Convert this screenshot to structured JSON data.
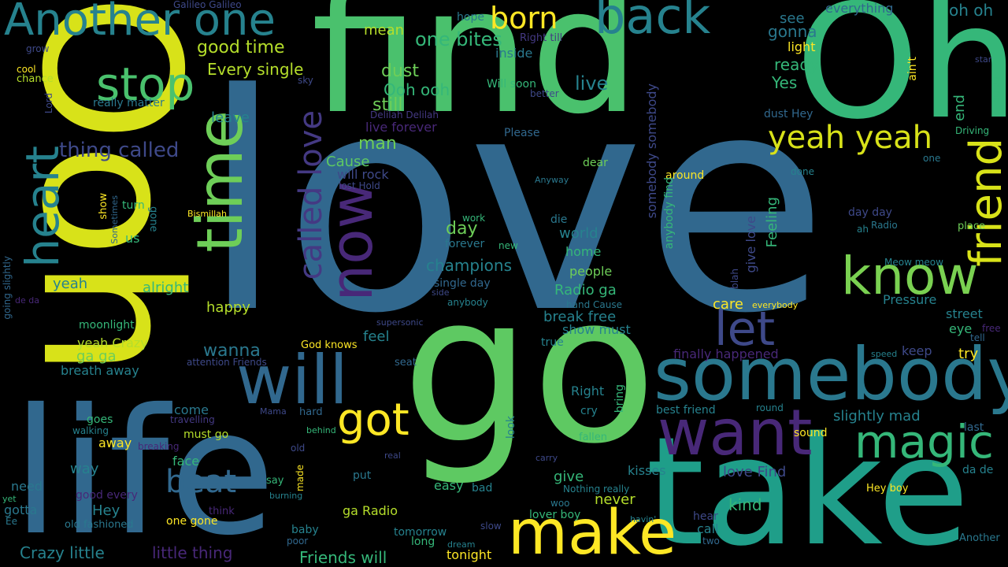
{
  "palette": {
    "background": "#000000",
    "colors": [
      "#fde725",
      "#b5de2b",
      "#6ece58",
      "#35b779",
      "#1f9e89",
      "#26828e",
      "#31688e",
      "#3e4989",
      "#482878",
      "#440154"
    ]
  },
  "words": [
    {
      "text": "love",
      "color": "#31688e"
    },
    {
      "text": "Ooh",
      "color": "#d8e219"
    },
    {
      "text": "find",
      "color": "#4ac16d"
    },
    {
      "text": "Oh",
      "color": "#35b779"
    },
    {
      "text": "go",
      "color": "#5ec962"
    },
    {
      "text": "take",
      "color": "#1f9e89"
    },
    {
      "text": "life",
      "color": "#31688e"
    },
    {
      "text": "somebody",
      "color": "#2a788e"
    },
    {
      "text": "want",
      "color": "#482878"
    },
    {
      "text": "will",
      "color": "#31688e"
    },
    {
      "text": "make",
      "color": "#fde725"
    },
    {
      "text": "magic",
      "color": "#35b779"
    },
    {
      "text": "Another one",
      "color": "#26828e"
    },
    {
      "text": "back",
      "color": "#26828e"
    },
    {
      "text": "born",
      "color": "#fde725"
    },
    {
      "text": "stop",
      "color": "#4ac16d"
    },
    {
      "text": "time",
      "color": "#6ece58"
    },
    {
      "text": "now",
      "color": "#482878"
    },
    {
      "text": "heart",
      "color": "#26828e"
    },
    {
      "text": "yeah yeah",
      "color": "#d8e219"
    },
    {
      "text": "friend",
      "color": "#d8e219"
    },
    {
      "text": "know",
      "color": "#7ad151"
    },
    {
      "text": "let",
      "color": "#3e4989"
    },
    {
      "text": "got",
      "color": "#fde725"
    },
    {
      "text": "beat",
      "color": "#31688e"
    },
    {
      "text": "called love",
      "color": "#443983"
    },
    {
      "text": "thing called",
      "color": "#3e4989"
    },
    {
      "text": "good time",
      "color": "#b5de2b"
    },
    {
      "text": "Every single",
      "color": "#b5de2b"
    },
    {
      "text": "one bites",
      "color": "#35b779"
    },
    {
      "text": "mean",
      "color": "#b5de2b"
    },
    {
      "text": "dust",
      "color": "#6ece58"
    },
    {
      "text": "Ooh ooh",
      "color": "#35b779"
    },
    {
      "text": "still",
      "color": "#6ece58"
    },
    {
      "text": "live",
      "color": "#26828e"
    },
    {
      "text": "see",
      "color": "#2a788e"
    },
    {
      "text": "gonna",
      "color": "#2a788e"
    },
    {
      "text": "light",
      "color": "#fde725"
    },
    {
      "text": "ready",
      "color": "#35b779"
    },
    {
      "text": "Yes",
      "color": "#35b779"
    },
    {
      "text": "oh oh",
      "color": "#26828e"
    },
    {
      "text": "everything",
      "color": "#31688e"
    },
    {
      "text": "Galileo Galileo",
      "color": "#3e4989"
    },
    {
      "text": "hope",
      "color": "#2a788e"
    },
    {
      "text": "Right till",
      "color": "#443983"
    },
    {
      "text": "inside",
      "color": "#2a788e"
    },
    {
      "text": "Will soon",
      "color": "#35b779"
    },
    {
      "text": "better",
      "color": "#3e4989"
    },
    {
      "text": "Delilah Delilah",
      "color": "#443983"
    },
    {
      "text": "live forever",
      "color": "#482878"
    },
    {
      "text": "man",
      "color": "#6ece58"
    },
    {
      "text": "Please",
      "color": "#31688e"
    },
    {
      "text": "Cause",
      "color": "#5ec962"
    },
    {
      "text": "will rock",
      "color": "#3e4989"
    },
    {
      "text": "lost Hold",
      "color": "#3e4989"
    },
    {
      "text": "dear",
      "color": "#6ece58"
    },
    {
      "text": "Anyway",
      "color": "#2a788e"
    },
    {
      "text": "around",
      "color": "#fde725"
    },
    {
      "text": "dust Hey",
      "color": "#31688e"
    },
    {
      "text": "end",
      "color": "#35b779"
    },
    {
      "text": "Driving",
      "color": "#35b779"
    },
    {
      "text": "one",
      "color": "#2a788e"
    },
    {
      "text": "done",
      "color": "#26828e"
    },
    {
      "text": "day day",
      "color": "#3e4989"
    },
    {
      "text": "Radio",
      "color": "#2a788e"
    },
    {
      "text": "ah",
      "color": "#26828e"
    },
    {
      "text": "place",
      "color": "#6ece58"
    },
    {
      "text": "grow",
      "color": "#3e4989"
    },
    {
      "text": "cool",
      "color": "#fde725"
    },
    {
      "text": "chance",
      "color": "#b5de2b"
    },
    {
      "text": "sky",
      "color": "#3e4989"
    },
    {
      "text": "really matter",
      "color": "#2a788e"
    },
    {
      "text": "Lord",
      "color": "#3e4989"
    },
    {
      "text": "leave",
      "color": "#26828e"
    },
    {
      "text": "turn",
      "color": "#35b779"
    },
    {
      "text": "show",
      "color": "#fde725"
    },
    {
      "text": "gone",
      "color": "#26828e"
    },
    {
      "text": "Sometimes",
      "color": "#31688e"
    },
    {
      "text": "us",
      "color": "#35b779"
    },
    {
      "text": "Bismillah",
      "color": "#fde725"
    },
    {
      "text": "work",
      "color": "#35b779"
    },
    {
      "text": "day",
      "color": "#6ece58"
    },
    {
      "text": "world",
      "color": "#26828e"
    },
    {
      "text": "die",
      "color": "#2a788e"
    },
    {
      "text": "forever",
      "color": "#2a788e"
    },
    {
      "text": "new",
      "color": "#35b779"
    },
    {
      "text": "home",
      "color": "#35b779"
    },
    {
      "text": "champions",
      "color": "#26828e"
    },
    {
      "text": "mind",
      "color": "#31688e"
    },
    {
      "text": "people",
      "color": "#6ece58"
    },
    {
      "text": "single day",
      "color": "#31688e"
    },
    {
      "text": "side",
      "color": "#3e4989"
    },
    {
      "text": "Radio ga",
      "color": "#35b779"
    },
    {
      "text": "anybody",
      "color": "#26828e"
    },
    {
      "text": "hand Cause",
      "color": "#2a788e"
    },
    {
      "text": "break free",
      "color": "#26828e"
    },
    {
      "text": "show must",
      "color": "#26828e"
    },
    {
      "text": "true",
      "color": "#26828e"
    },
    {
      "text": "yeah",
      "color": "#26828e"
    },
    {
      "text": "alright",
      "color": "#35b779"
    },
    {
      "text": "happy",
      "color": "#b5de2b"
    },
    {
      "text": "moonlight",
      "color": "#35b779"
    },
    {
      "text": "yeah Crazy",
      "color": "#b5de2b"
    },
    {
      "text": "ga ga",
      "color": "#6ece58"
    },
    {
      "text": "breath away",
      "color": "#26828e"
    },
    {
      "text": "attention Friends",
      "color": "#3e4989"
    },
    {
      "text": "God knows",
      "color": "#fde725"
    },
    {
      "text": "wanna",
      "color": "#2a788e"
    },
    {
      "text": "feel",
      "color": "#26828e"
    },
    {
      "text": "seat",
      "color": "#31688e"
    },
    {
      "text": "supersonic",
      "color": "#3e4989"
    },
    {
      "text": "somebody somebody",
      "color": "#3e4989"
    },
    {
      "text": "anybody find",
      "color": "#35b779"
    },
    {
      "text": "give love",
      "color": "#3e4989"
    },
    {
      "text": "blah",
      "color": "#3e4989"
    },
    {
      "text": "Feeling",
      "color": "#35b779"
    },
    {
      "text": "ain't",
      "color": "#fde725"
    },
    {
      "text": "Meow meow",
      "color": "#26828e"
    },
    {
      "text": "Pressure",
      "color": "#26828e"
    },
    {
      "text": "care",
      "color": "#fde725"
    },
    {
      "text": "everybody",
      "color": "#fde725"
    },
    {
      "text": "finally happened",
      "color": "#482878"
    },
    {
      "text": "speed",
      "color": "#26828e"
    },
    {
      "text": "keep",
      "color": "#3e4989"
    },
    {
      "text": "try",
      "color": "#fde725"
    },
    {
      "text": "street",
      "color": "#26828e"
    },
    {
      "text": "eye",
      "color": "#35b779"
    },
    {
      "text": "free",
      "color": "#482878"
    },
    {
      "text": "tell",
      "color": "#31688e"
    },
    {
      "text": "star",
      "color": "#3e4989"
    },
    {
      "text": "ba ba",
      "color": "#35b779"
    },
    {
      "text": "going slightly",
      "color": "#31688e"
    },
    {
      "text": "de da",
      "color": "#482878"
    },
    {
      "text": "goes",
      "color": "#35b779"
    },
    {
      "text": "come",
      "color": "#2a788e"
    },
    {
      "text": "travelling",
      "color": "#443983"
    },
    {
      "text": "walking",
      "color": "#26828e"
    },
    {
      "text": "breaking",
      "color": "#482878"
    },
    {
      "text": "away",
      "color": "#fde725"
    },
    {
      "text": "must go",
      "color": "#b5de2b"
    },
    {
      "text": "face",
      "color": "#35b779"
    },
    {
      "text": "way",
      "color": "#26828e"
    },
    {
      "text": "need",
      "color": "#2a788e"
    },
    {
      "text": "good every",
      "color": "#482878"
    },
    {
      "text": "gotta",
      "color": "#2a788e"
    },
    {
      "text": "yet",
      "color": "#35b779"
    },
    {
      "text": "Hey",
      "color": "#26828e"
    },
    {
      "text": "Ee",
      "color": "#2a788e"
    },
    {
      "text": "old fashioned",
      "color": "#2a788e"
    },
    {
      "text": "one gone",
      "color": "#fde725"
    },
    {
      "text": "think",
      "color": "#482878"
    },
    {
      "text": "Mama",
      "color": "#3e4989"
    },
    {
      "text": "hard",
      "color": "#31688e"
    },
    {
      "text": "behind",
      "color": "#35b779"
    },
    {
      "text": "old",
      "color": "#3e4989"
    },
    {
      "text": "say",
      "color": "#35b779"
    },
    {
      "text": "burning",
      "color": "#26828e"
    },
    {
      "text": "made",
      "color": "#fde725"
    },
    {
      "text": "real",
      "color": "#3e4989"
    },
    {
      "text": "put",
      "color": "#2a788e"
    },
    {
      "text": "look",
      "color": "#26828e"
    },
    {
      "text": "easy",
      "color": "#35b779"
    },
    {
      "text": "bad",
      "color": "#26828e"
    },
    {
      "text": "carry",
      "color": "#3e4989"
    },
    {
      "text": "Right",
      "color": "#26828e"
    },
    {
      "text": "cry",
      "color": "#26828e"
    },
    {
      "text": "bring",
      "color": "#35b779"
    },
    {
      "text": "fallen",
      "color": "#35b779"
    },
    {
      "text": "best friend",
      "color": "#26828e"
    },
    {
      "text": "round",
      "color": "#26828e"
    },
    {
      "text": "sound",
      "color": "#fde725"
    },
    {
      "text": "slightly mad",
      "color": "#26828e"
    },
    {
      "text": "last",
      "color": "#31688e"
    },
    {
      "text": "give",
      "color": "#35b779"
    },
    {
      "text": "kisses",
      "color": "#26828e"
    },
    {
      "text": "love Find",
      "color": "#3e4989"
    },
    {
      "text": "never",
      "color": "#b5de2b"
    },
    {
      "text": "Nothing really",
      "color": "#26828e"
    },
    {
      "text": "woo",
      "color": "#2a788e"
    },
    {
      "text": "kind",
      "color": "#35b779"
    },
    {
      "text": "Hey boy",
      "color": "#fde725"
    },
    {
      "text": "da de",
      "color": "#26828e"
    },
    {
      "text": "ga Radio",
      "color": "#b5de2b"
    },
    {
      "text": "lover boy",
      "color": "#35b779"
    },
    {
      "text": "havin'",
      "color": "#26828e"
    },
    {
      "text": "hear",
      "color": "#3e4989"
    },
    {
      "text": "call",
      "color": "#26828e"
    },
    {
      "text": "two",
      "color": "#31688e"
    },
    {
      "text": "baby",
      "color": "#26828e"
    },
    {
      "text": "poor",
      "color": "#31688e"
    },
    {
      "text": "tomorrow",
      "color": "#26828e"
    },
    {
      "text": "long",
      "color": "#35b779"
    },
    {
      "text": "slow",
      "color": "#3e4989"
    },
    {
      "text": "dream",
      "color": "#26828e"
    },
    {
      "text": "tonight",
      "color": "#fde725"
    },
    {
      "text": "Crazy little",
      "color": "#26828e"
    },
    {
      "text": "little thing",
      "color": "#482878"
    },
    {
      "text": "Friends will",
      "color": "#35b779"
    },
    {
      "text": "Another",
      "color": "#2a788e"
    }
  ]
}
